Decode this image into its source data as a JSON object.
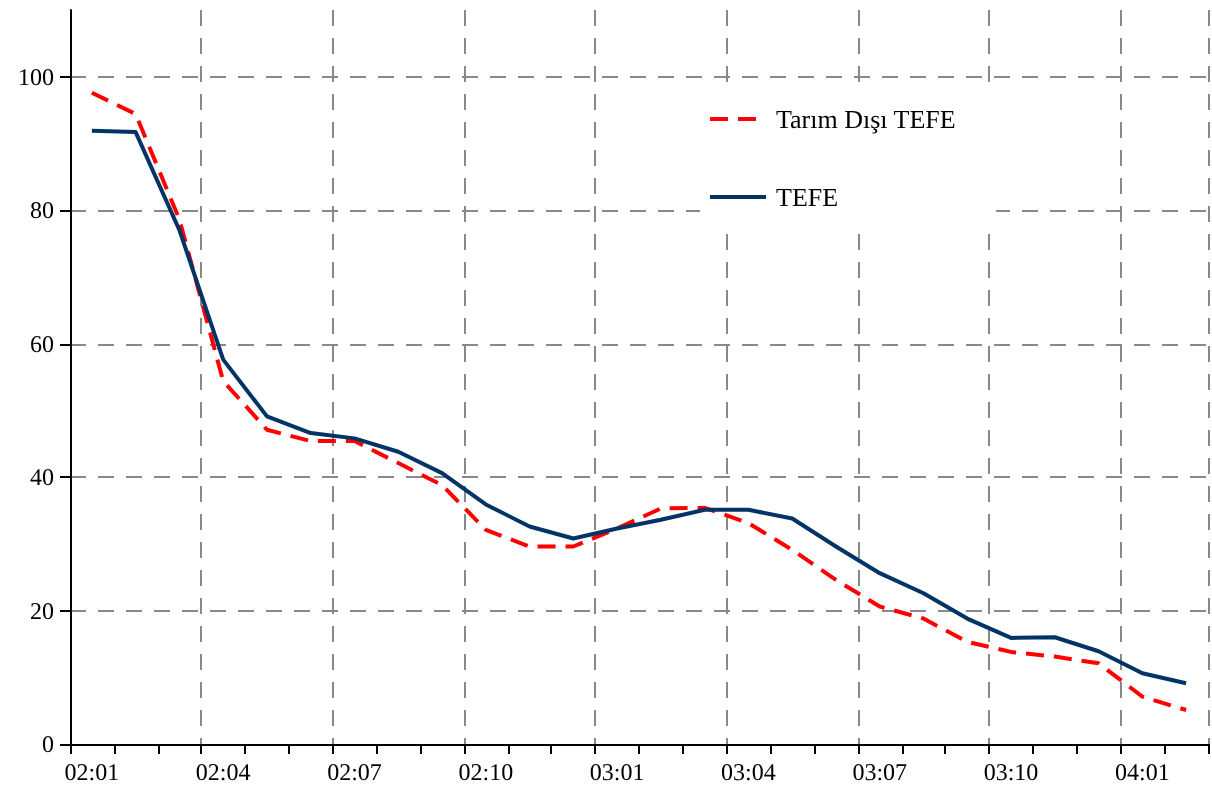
{
  "chart_data": {
    "type": "line",
    "categories": [
      "02:01",
      null,
      null,
      "02:04",
      null,
      null,
      "02:07",
      null,
      null,
      "02:10",
      null,
      null,
      "03:01",
      null,
      null,
      "03:04",
      null,
      null,
      "03:07",
      null,
      null,
      "03:10",
      null,
      null,
      "04:01",
      null
    ],
    "series": [
      {
        "name": "Tarım Dışı TEFE",
        "color": "#ff0000",
        "line_style": "dashed",
        "values": [
          97.6,
          94.4,
          78.6,
          54.4,
          47.1,
          45.4,
          45.4,
          42.1,
          38.8,
          32.1,
          29.6,
          29.6,
          32.3,
          35.3,
          35.4,
          33.1,
          29.1,
          24.6,
          20.6,
          18.8,
          15.3,
          13.8,
          13.1,
          12.1,
          7.1,
          5.1
        ]
      },
      {
        "name": "TEFE",
        "color": "#003366",
        "line_style": "solid",
        "values": [
          91.9,
          91.7,
          77,
          57.6,
          49.1,
          46.6,
          45.8,
          43.8,
          40.6,
          35.9,
          32.6,
          30.8,
          32.3,
          33.6,
          35.1,
          35.1,
          33.8,
          29.6,
          25.6,
          22.6,
          18.8,
          15.9,
          16,
          13.9,
          10.6,
          9.1
        ]
      }
    ],
    "ylim": [
      0,
      110
    ],
    "yticks": [
      0,
      20,
      40,
      60,
      80,
      100
    ],
    "grid": true,
    "legend": "top right",
    "marker": "none"
  }
}
